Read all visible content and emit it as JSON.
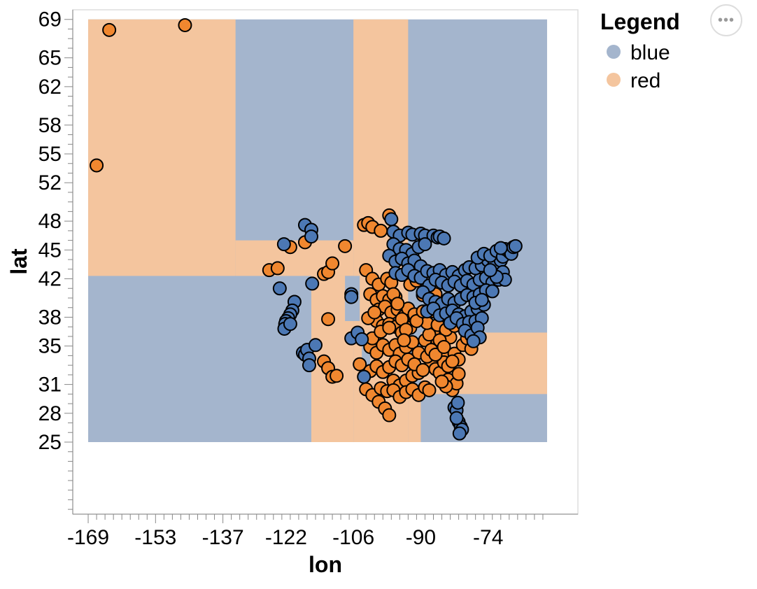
{
  "menu": {
    "icon": "ellipsis-icon",
    "glyph": "•••"
  },
  "chart_data": {
    "type": "scatter",
    "title": "",
    "xlabel": "lon",
    "ylabel": "lat",
    "xlim": [
      -171,
      -58
    ],
    "ylim": [
      17.5,
      70
    ],
    "x_ticks": [
      -169,
      -153,
      -137,
      -122,
      -106,
      -90,
      -74
    ],
    "y_ticks": [
      25,
      28,
      31,
      35,
      38,
      42,
      45,
      48,
      52,
      55,
      58,
      62,
      65,
      69
    ],
    "legend": {
      "title": "Legend",
      "position": "right",
      "entries": [
        {
          "label": "blue",
          "color": "#a4b5cd"
        },
        {
          "label": "red",
          "color": "#f4c59e"
        }
      ]
    },
    "colors": {
      "region_blue": "#a4b5cd",
      "region_red": "#f4c59e",
      "point_blue": "#4c78b4",
      "point_red": "#f0872f",
      "point_stroke": "#000000"
    },
    "decision_regions": [
      {
        "class": "blue",
        "lon": [
          -169,
          -60
        ],
        "lat": [
          25,
          69
        ]
      },
      {
        "class": "red",
        "lon": [
          -169,
          -134
        ],
        "lat": [
          42.3,
          69
        ]
      },
      {
        "class": "red",
        "lon": [
          -134,
          -106
        ],
        "lat": [
          42.3,
          46
        ]
      },
      {
        "class": "red",
        "lon": [
          -116,
          -106
        ],
        "lat": [
          25,
          42.3
        ]
      },
      {
        "class": "red",
        "lon": [
          -106,
          -93
        ],
        "lat": [
          25,
          69
        ]
      },
      {
        "class": "red",
        "lon": [
          -93,
          -90
        ],
        "lat": [
          25,
          30
        ]
      },
      {
        "class": "red",
        "lon": [
          -90,
          -60
        ],
        "lat": [
          30,
          36.4
        ]
      },
      {
        "class": "blue",
        "lon": [
          -108,
          -104.5
        ],
        "lat": [
          37.6,
          42.3
        ]
      },
      {
        "class": "blue",
        "lon": [
          -104,
          -102
        ],
        "lat": [
          31.5,
          36
        ]
      }
    ],
    "series": [
      {
        "name": "red",
        "color": "#f0872f",
        "points": [
          [
            -164,
            67.9
          ],
          [
            -146,
            68.4
          ],
          [
            -167,
            53.8
          ],
          [
            -126,
            42.9
          ],
          [
            -124,
            43.1
          ],
          [
            -121,
            45.3
          ],
          [
            -117.5,
            45.8
          ],
          [
            -113,
            42.5
          ],
          [
            -112,
            42.7
          ],
          [
            -111,
            43.6
          ],
          [
            -108,
            45.4
          ],
          [
            -112,
            37.8
          ],
          [
            -113,
            33.4
          ],
          [
            -112,
            32.7
          ],
          [
            -111,
            31.8
          ],
          [
            -110,
            31.9
          ],
          [
            -103.5,
            47.6
          ],
          [
            -102.5,
            47.8
          ],
          [
            -101.5,
            47.4
          ],
          [
            -99.5,
            47
          ],
          [
            -97.5,
            48.6
          ],
          [
            -103,
            42.9
          ],
          [
            -101.5,
            42
          ],
          [
            -100,
            41.4
          ],
          [
            -98,
            42
          ],
          [
            -97,
            41.6
          ],
          [
            -102,
            40.4
          ],
          [
            -100.5,
            39.8
          ],
          [
            -99,
            40.2
          ],
          [
            -97.5,
            39.8
          ],
          [
            -96,
            40.1
          ],
          [
            -100,
            38.8
          ],
          [
            -98.5,
            39.1
          ],
          [
            -97,
            38.5
          ],
          [
            -95.5,
            38.8
          ],
          [
            -94,
            38.1
          ],
          [
            -100.5,
            37.6
          ],
          [
            -99,
            37.1
          ],
          [
            -97.5,
            37.3
          ],
          [
            -96,
            37
          ],
          [
            -94.5,
            36.4
          ],
          [
            -102,
            34.9
          ],
          [
            -100.5,
            34.3
          ],
          [
            -99,
            35.1
          ],
          [
            -97.5,
            34.6
          ],
          [
            -96,
            35.1
          ],
          [
            -95,
            34.2
          ],
          [
            -93.5,
            34.9
          ],
          [
            -92,
            35.4
          ],
          [
            -90.5,
            34.3
          ],
          [
            -104.5,
            33.1
          ],
          [
            -102,
            32.4
          ],
          [
            -100.5,
            32.9
          ],
          [
            -99,
            32.3
          ],
          [
            -97.5,
            32.8
          ],
          [
            -96.5,
            31.4
          ],
          [
            -95,
            30.9
          ],
          [
            -93.5,
            31.4
          ],
          [
            -92,
            31.9
          ],
          [
            -90.5,
            32.2
          ],
          [
            -103,
            30.5
          ],
          [
            -101.5,
            29.9
          ],
          [
            -100,
            29.2
          ],
          [
            -98.5,
            28.5
          ],
          [
            -97.5,
            27.8
          ],
          [
            -99.5,
            30.6
          ],
          [
            -98,
            30.3
          ],
          [
            -96.5,
            30.4
          ],
          [
            -95,
            29.7
          ],
          [
            -93.5,
            30.2
          ],
          [
            -92,
            30.5
          ],
          [
            -90.5,
            29.9
          ],
          [
            -89,
            30.7
          ],
          [
            -88,
            30.4
          ],
          [
            -87,
            36.3
          ],
          [
            -86,
            35.4
          ],
          [
            -85,
            34.8
          ],
          [
            -84,
            33.9
          ],
          [
            -83,
            35.9
          ],
          [
            -82,
            34.2
          ],
          [
            -81,
            33.6
          ],
          [
            -80,
            35.1
          ],
          [
            -79,
            35.8
          ],
          [
            -78,
            34.7
          ],
          [
            -89,
            35.6
          ],
          [
            -88,
            36.2
          ],
          [
            -87.5,
            33.1
          ],
          [
            -86.5,
            32.6
          ],
          [
            -85.5,
            32.2
          ],
          [
            -84.5,
            33.3
          ],
          [
            -83.5,
            31.5
          ],
          [
            -82.5,
            30.4
          ],
          [
            -81.5,
            31.1
          ],
          [
            -87,
            38.6
          ],
          [
            -85.5,
            39.1
          ],
          [
            -84.5,
            38.3
          ],
          [
            -83,
            38.9
          ],
          [
            -81.5,
            37.6
          ],
          [
            -92.5,
            41.4
          ],
          [
            -91,
            41.8
          ],
          [
            -89.5,
            40.3
          ],
          [
            -88,
            40.9
          ],
          [
            -86.5,
            40.4
          ],
          [
            -93,
            38.9
          ],
          [
            -91.5,
            38.3
          ],
          [
            -90,
            37.8
          ],
          [
            -88.5,
            37.4
          ],
          [
            -92.5,
            36.9
          ],
          [
            -91,
            37.6
          ],
          [
            -89.5,
            38.6
          ],
          [
            -86,
            37.2
          ],
          [
            -84,
            36.7
          ],
          [
            -82,
            37.1
          ],
          [
            -96.5,
            40.4
          ],
          [
            -95.5,
            39.4
          ],
          [
            -94.5,
            37.8
          ],
          [
            -93.5,
            36.7
          ],
          [
            -94,
            35.6
          ],
          [
            -96,
            33.4
          ],
          [
            -94.5,
            33
          ],
          [
            -93,
            33.6
          ],
          [
            -91.5,
            33.1
          ],
          [
            -89.5,
            32.5
          ],
          [
            -88.5,
            33.9
          ],
          [
            -87.5,
            34.6
          ],
          [
            -86.5,
            34.1
          ],
          [
            -85.5,
            35.6
          ],
          [
            -84.5,
            34.9
          ],
          [
            -83.5,
            32.9
          ],
          [
            -82.5,
            33.4
          ],
          [
            -81,
            32.1
          ],
          [
            -84,
            30.8
          ],
          [
            -85,
            31.3
          ],
          [
            -101.5,
            35.8
          ],
          [
            -99.5,
            36.5
          ],
          [
            -97.5,
            36.9
          ],
          [
            -102.5,
            37.9
          ],
          [
            -101,
            38.5
          ]
        ]
      },
      {
        "name": "blue",
        "color": "#4c78b4",
        "points": [
          [
            -117.5,
            47.6
          ],
          [
            -116,
            47.1
          ],
          [
            -116,
            46.4
          ],
          [
            -122.5,
            45.6
          ],
          [
            -123.5,
            41
          ],
          [
            -120,
            39.6
          ],
          [
            -120.5,
            38.7
          ],
          [
            -121,
            38.3
          ],
          [
            -121.5,
            37.9
          ],
          [
            -122,
            37.6
          ],
          [
            -122.2,
            37.3
          ],
          [
            -122.4,
            36.8
          ],
          [
            -121,
            37.3
          ],
          [
            -115.8,
            41.5
          ],
          [
            -118,
            34.3
          ],
          [
            -117.5,
            34.1
          ],
          [
            -117,
            34.6
          ],
          [
            -116.5,
            33.7
          ],
          [
            -116.5,
            33
          ],
          [
            -115,
            35.1
          ],
          [
            -106.5,
            40.4
          ],
          [
            -106.5,
            40.1
          ],
          [
            -106.5,
            35.8
          ],
          [
            -105,
            36.4
          ],
          [
            -104,
            35.7
          ],
          [
            -103.5,
            31.8
          ],
          [
            -97,
            48.2
          ],
          [
            -96.5,
            46.9
          ],
          [
            -95,
            46.5
          ],
          [
            -93,
            46.8
          ],
          [
            -92,
            46.6
          ],
          [
            -90,
            46.7
          ],
          [
            -89,
            46.5
          ],
          [
            -87,
            46.5
          ],
          [
            -86,
            46.3
          ],
          [
            -85.5,
            46.4
          ],
          [
            -84.5,
            46.2
          ],
          [
            -96.5,
            45.6
          ],
          [
            -95,
            45.1
          ],
          [
            -93.5,
            45
          ],
          [
            -92,
            44.6
          ],
          [
            -90.5,
            45.3
          ],
          [
            -89,
            45.6
          ],
          [
            -97.5,
            44.4
          ],
          [
            -96,
            43.8
          ],
          [
            -94.5,
            44.1
          ],
          [
            -93,
            43.6
          ],
          [
            -91.5,
            43.9
          ],
          [
            -90,
            43.3
          ],
          [
            -96,
            42.6
          ],
          [
            -94.5,
            42.4
          ],
          [
            -93,
            42.9
          ],
          [
            -91.5,
            42.3
          ],
          [
            -90,
            42.1
          ],
          [
            -88.5,
            42.8
          ],
          [
            -87,
            42.6
          ],
          [
            -85.5,
            42.9
          ],
          [
            -84,
            42.4
          ],
          [
            -82.5,
            42.7
          ],
          [
            -81,
            42.3
          ],
          [
            -79.5,
            42.9
          ],
          [
            -88,
            41.3
          ],
          [
            -86.5,
            41.9
          ],
          [
            -85,
            41.6
          ],
          [
            -83.5,
            41.3
          ],
          [
            -82,
            41.7
          ],
          [
            -80.5,
            41.3
          ],
          [
            -79,
            41.8
          ],
          [
            -77.5,
            41.4
          ],
          [
            -76,
            41.9
          ],
          [
            -74.5,
            42.1
          ],
          [
            -73,
            41.6
          ],
          [
            -71.5,
            41.9
          ],
          [
            -89.5,
            40.6
          ],
          [
            -88,
            39.9
          ],
          [
            -86.5,
            39.6
          ],
          [
            -85,
            39.4
          ],
          [
            -83.5,
            39.9
          ],
          [
            -82,
            39.5
          ],
          [
            -80.5,
            39.9
          ],
          [
            -79,
            40.3
          ],
          [
            -77.5,
            40.1
          ],
          [
            -76,
            40.4
          ],
          [
            -74.5,
            40.8
          ],
          [
            -73,
            40.7
          ],
          [
            -88.5,
            38.6
          ],
          [
            -87,
            38.9
          ],
          [
            -85.5,
            38.2
          ],
          [
            -84,
            38.4
          ],
          [
            -82.5,
            38.7
          ],
          [
            -81,
            38.3
          ],
          [
            -79.5,
            38.1
          ],
          [
            -78,
            38.6
          ],
          [
            -76.5,
            38.9
          ],
          [
            -75,
            39.3
          ],
          [
            -77,
            39.5
          ],
          [
            -75.5,
            39.8
          ],
          [
            -83,
            37.4
          ],
          [
            -81.5,
            37.9
          ],
          [
            -80,
            37.3
          ],
          [
            -78.5,
            37.5
          ],
          [
            -77,
            37.6
          ],
          [
            -75.5,
            37.9
          ],
          [
            -79.5,
            36.6
          ],
          [
            -78,
            36.1
          ],
          [
            -76.5,
            36.9
          ],
          [
            -76,
            35.9
          ],
          [
            -77.5,
            35.5
          ],
          [
            -78.5,
            43.2
          ],
          [
            -77,
            43.1
          ],
          [
            -75.5,
            43.4
          ],
          [
            -74,
            43.9
          ],
          [
            -72.5,
            43.6
          ],
          [
            -71,
            43.9
          ],
          [
            -76.5,
            44.2
          ],
          [
            -75,
            44.6
          ],
          [
            -73.5,
            44.4
          ],
          [
            -72,
            44.9
          ],
          [
            -70.5,
            44.3
          ],
          [
            -70,
            45.1
          ],
          [
            -69,
            44.8
          ],
          [
            -68.5,
            44.6
          ],
          [
            -68,
            45.3
          ],
          [
            -67.5,
            45.4
          ],
          [
            -71,
            45.2
          ],
          [
            -71.5,
            42.4
          ],
          [
            -70.5,
            42.7
          ],
          [
            -70,
            41.9
          ],
          [
            -72,
            42.2
          ],
          [
            -73.5,
            42.9
          ],
          [
            -82,
            28.6
          ],
          [
            -81.5,
            28.3
          ],
          [
            -81,
            27.1
          ],
          [
            -80.5,
            26.6
          ],
          [
            -80.2,
            26.3
          ],
          [
            -81.5,
            27.5
          ],
          [
            -81.2,
            29.1
          ],
          [
            -80.8,
            25.9
          ]
        ]
      }
    ]
  }
}
